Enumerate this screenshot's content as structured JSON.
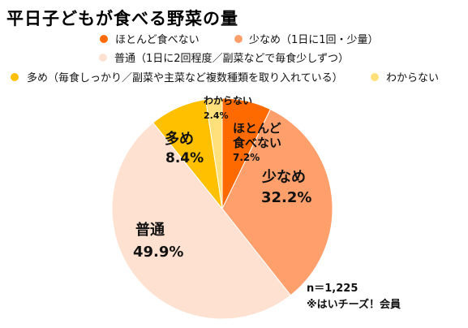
{
  "chart_data": {
    "type": "pie",
    "title": "平日子どもが食べる野菜の量",
    "series": [
      {
        "name": "ほとんど食べない",
        "value": 7.2,
        "label": "7.2%",
        "label_title": "ほとんど\n食べない",
        "color": "#ff6a00"
      },
      {
        "name": "少なめ（1日に1回・少量）",
        "value": 32.2,
        "label": "32.2%",
        "label_title": "少なめ",
        "color": "#ff9f6b"
      },
      {
        "name": "普通（1日に2回程度／副菜などで毎食少しずつ）",
        "value": 49.9,
        "label": "49.9%",
        "label_title": "普通",
        "color": "#ffe1d1"
      },
      {
        "name": "多め（毎食しっかり／副菜や主菜など複数種類を取り入れている）",
        "value": 8.4,
        "label": "8.4%",
        "label_title": "多め",
        "color": "#ffc000"
      },
      {
        "name": "わからない",
        "value": 2.4,
        "label": "2.4%",
        "label_title": "わからない",
        "color": "#ffe07a"
      }
    ],
    "notes": [
      "n＝1,225",
      "※はいチーズ！会員"
    ]
  }
}
